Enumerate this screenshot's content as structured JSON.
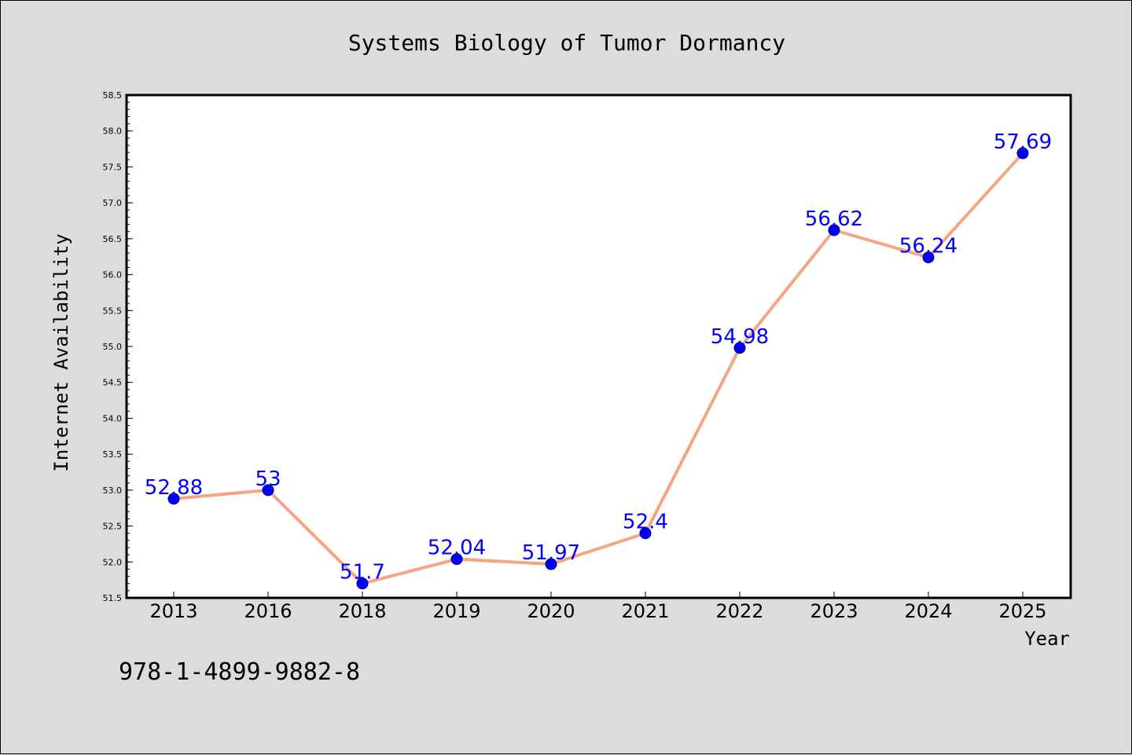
{
  "chart_data": {
    "type": "line",
    "title": "Systems Biology of Tumor Dormancy",
    "xlabel": "Year",
    "ylabel": "Internet Availability",
    "categories": [
      "2013",
      "2016",
      "2018",
      "2019",
      "2020",
      "2021",
      "2022",
      "2023",
      "2024",
      "2025"
    ],
    "series": [
      {
        "values": [
          52.88,
          53.0,
          51.7,
          52.04,
          51.97,
          52.4,
          54.98,
          56.62,
          56.24,
          57.69
        ],
        "data_labels": [
          "52.88",
          "53",
          "51.7",
          "52.04",
          "51.97",
          "52.4",
          "54.98",
          "56.62",
          "56.24",
          "57.69"
        ]
      }
    ],
    "ylim": [
      51.5,
      58.5
    ],
    "yticks": [
      "51.5",
      "52.0",
      "52.5",
      "53.0",
      "53.5",
      "54.0",
      "54.5",
      "55.0",
      "55.5",
      "56.0",
      "56.5",
      "57.0",
      "57.5",
      "58.0",
      "58.5"
    ],
    "grid": false,
    "legend": "none",
    "colors": {
      "line": "#f4a582",
      "marker": "#0000ff",
      "marker_edge": "#00008b",
      "data_label": "#0000ff",
      "background": "#dcdcdc",
      "plot_background": "#ffffff"
    }
  },
  "footer_text": "978-1-4899-9882-8"
}
